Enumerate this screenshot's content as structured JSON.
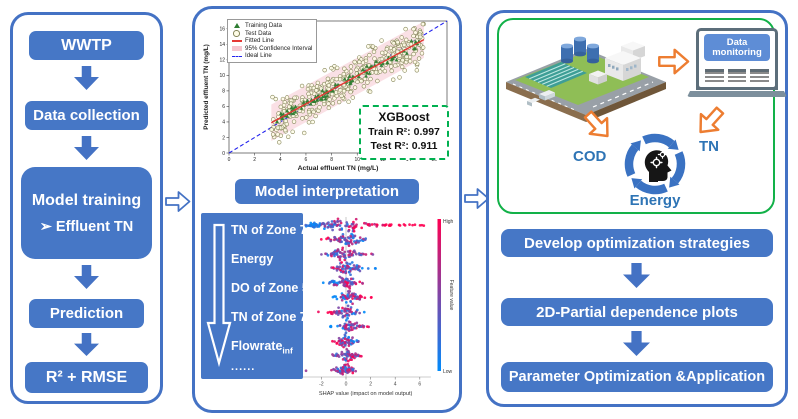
{
  "panels": {
    "left": {
      "steps": [
        {
          "label": "WWTP"
        },
        {
          "label": "Data collection"
        },
        {
          "label": "Model training",
          "sub": "➢ Effluent TN"
        },
        {
          "label": "Prediction"
        },
        {
          "label": "R² + RMSE"
        }
      ]
    },
    "middle": {
      "interpretation_label": "Model interpretation",
      "feature_list": {
        "items": [
          "TN of Zone 7",
          "Energy",
          "DO of Zone 5",
          "TN of Zone 7"
        ],
        "flowrate_base": "Flowrate",
        "flowrate_sub": "inf",
        "ellipsis": "......"
      }
    },
    "right": {
      "monitor_label": "Data monitoring",
      "cycle": {
        "left": "COD",
        "right": "TN",
        "bottom": "Energy"
      },
      "steps": [
        "Develop optimization strategies",
        "2D-Partial dependence plots",
        "Parameter Optimization &Application"
      ]
    }
  },
  "chart_data": [
    {
      "type": "scatter",
      "title": "",
      "xlabel": "Actual effluent TN (mg/L)",
      "ylabel": "Predicted effluent TN (mg/L)",
      "xlim": [
        0,
        17
      ],
      "ylim": [
        0,
        17
      ],
      "xticks": [
        0,
        2,
        4,
        6,
        8,
        10,
        12,
        14,
        16
      ],
      "yticks": [
        0,
        2,
        4,
        6,
        8,
        10,
        12,
        14,
        16
      ],
      "legend": [
        "Training Data",
        "Test Data",
        "Fitted Line",
        "95% Confidence Interval",
        "Ideal Line"
      ],
      "annotation": {
        "title": "XGBoost",
        "lines": [
          {
            "label": "Train R²:",
            "value": "0.997"
          },
          {
            "label": "Test R²:",
            "value": "0.911"
          }
        ]
      },
      "fitted_line": {
        "x0": 3.3,
        "y0": 3.9,
        "x1": 15.2,
        "y1": 14.6
      },
      "ideal_line": {
        "x0": 0,
        "y0": 0,
        "x1": 17,
        "y1": 17
      },
      "confidence_band": {
        "x0": 3.3,
        "x1": 15.2,
        "half_width": 2.35
      },
      "point_spec": {
        "seed": 1234,
        "test": {
          "n": 380,
          "x_min": 3.3,
          "x_max": 15.2,
          "noise_sd": 1.35
        },
        "train": {
          "n": 90,
          "x_min": 3.4,
          "x_max": 15.0,
          "noise_sd": 0.3
        }
      }
    },
    {
      "type": "scatter",
      "subtype": "shap_beeswarm",
      "xlabel": "SHAP value (impact on model output)",
      "xlim": [
        -3.6,
        7
      ],
      "xticks": [
        -2,
        0,
        2,
        4,
        6
      ],
      "colorbar": {
        "high": "High",
        "low": "Low",
        "label": "Feature value"
      },
      "row_spec": {
        "seed": 99,
        "rows": [
          {
            "center": -0.2,
            "sd": 1.5,
            "min": -3.3,
            "max": 6.6,
            "tail": 0.4,
            "n": 110,
            "corr": 1,
            "cluster2": {
              "center": -2.7,
              "sd": 0.25,
              "n": 26,
              "v": 0.08
            }
          },
          {
            "center": 0.0,
            "sd": 0.8,
            "min": -2.6,
            "max": 1.6,
            "tail": 0.1,
            "n": 72,
            "corr": -0.3
          },
          {
            "center": -0.2,
            "sd": 0.7,
            "min": -2.0,
            "max": 2.3,
            "tail": 0.12,
            "n": 70,
            "corr": 0.2
          },
          {
            "center": 0.1,
            "sd": 0.7,
            "min": -1.4,
            "max": 3.2,
            "tail": 0.15,
            "n": 66,
            "corr": -0.6
          },
          {
            "center": -0.1,
            "sd": 0.6,
            "min": -1.9,
            "max": 1.4,
            "tail": 0.1,
            "n": 62,
            "corr": 0.4
          },
          {
            "center": 0.2,
            "sd": 0.6,
            "min": -1.3,
            "max": 2.8,
            "tail": 0.12,
            "n": 62,
            "corr": 0.5
          },
          {
            "center": -0.1,
            "sd": 0.6,
            "min": -2.3,
            "max": 1.6,
            "tail": 0.1,
            "n": 60,
            "corr": -0.4
          },
          {
            "center": 0.2,
            "sd": 0.6,
            "min": -1.6,
            "max": 2.3,
            "tail": 0.12,
            "n": 58,
            "corr": 0.5
          },
          {
            "center": -0.1,
            "sd": 0.5,
            "min": -1.9,
            "max": 1.3,
            "tail": 0.08,
            "n": 56,
            "corr": -0.5
          },
          {
            "center": 0.1,
            "sd": 0.5,
            "min": -1.1,
            "max": 1.6,
            "tail": 0.08,
            "n": 56,
            "corr": 0.3
          },
          {
            "center": -0.1,
            "sd": 0.5,
            "min": -3.4,
            "max": 1.1,
            "tail": 0.1,
            "n": 55,
            "corr": 0.2
          }
        ]
      }
    }
  ],
  "colors": {
    "box_blue": "#4677C6",
    "border_blue": "#4472C4",
    "green_border": "#12B148",
    "orange": "#ED7D31",
    "fitted_line": "#E53935",
    "ideal_line": "#2222EE",
    "ci_band": "#F6C6CF",
    "train_marker": "#2E7D32",
    "test_marker_stroke": "#85855A",
    "shap_low": "#008BFB",
    "shap_high": "#FF0051"
  }
}
